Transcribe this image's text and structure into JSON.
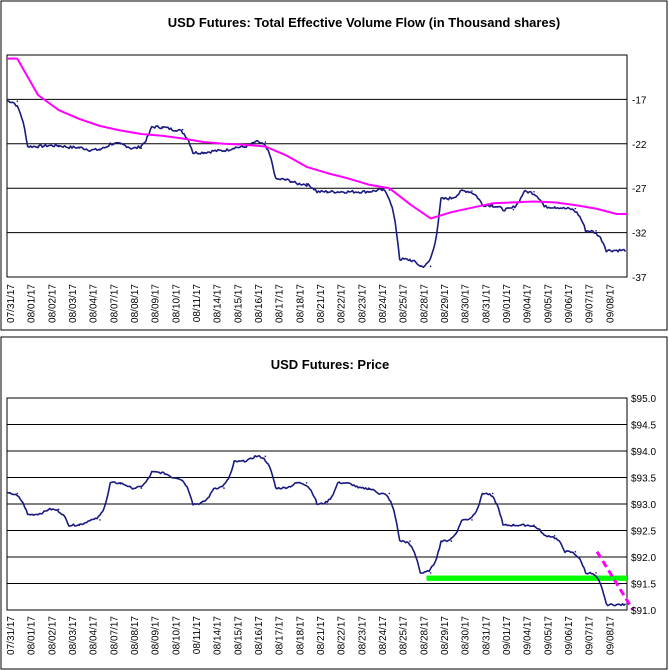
{
  "chart_data": [
    {
      "type": "line",
      "title": "USD Futures: Total Effective Volume Flow (in Thousand shares)",
      "xlabel": "",
      "ylabel": "",
      "ylim": [
        -37,
        -12
      ],
      "yticks": [
        -17,
        -22,
        -27,
        -32,
        -37
      ],
      "ytick_labels": [
        "-17",
        "-22",
        "-27",
        "-32",
        "-37"
      ],
      "categories": [
        "07/31/17",
        "08/01/17",
        "08/02/17",
        "08/03/17",
        "08/04/17",
        "08/07/17",
        "08/08/17",
        "08/09/17",
        "08/10/17",
        "08/11/17",
        "08/14/17",
        "08/15/17",
        "08/16/17",
        "08/17/17",
        "08/18/17",
        "08/21/17",
        "08/22/17",
        "08/23/17",
        "08/24/17",
        "08/25/17",
        "08/28/17",
        "08/29/17",
        "08/30/17",
        "08/31/17",
        "09/01/17",
        "09/04/17",
        "09/05/17",
        "09/06/17",
        "09/07/17",
        "09/08/17"
      ],
      "grid": true,
      "series": [
        {
          "color": "#1a1a80",
          "values": [
            -17.2,
            -22.3,
            -22.2,
            -22.4,
            -22.7,
            -22.0,
            -22.5,
            -20.1,
            -20.4,
            -23.0,
            -22.8,
            -22.4,
            -21.8,
            -26.0,
            -26.5,
            -27.4,
            -27.4,
            -27.4,
            -27.2,
            -35.0,
            -35.8,
            -28.2,
            -27.3,
            -28.9,
            -29.4,
            -27.4,
            -29.1,
            -29.3,
            -31.8,
            -34.0
          ]
        },
        {
          "color": "#ff00ff",
          "values": [
            -12.4,
            -16.5,
            -18.2,
            -19.2,
            -20.0,
            -20.5,
            -20.9,
            -21.1,
            -21.4,
            -21.8,
            -22.0,
            -22.1,
            -22.3,
            -23.3,
            -24.6,
            -25.3,
            -25.9,
            -26.6,
            -27.0,
            -28.8,
            -30.4,
            -29.7,
            -29.2,
            -28.7,
            -28.6,
            -28.5,
            -28.6,
            -28.9,
            -29.3,
            -29.9
          ]
        }
      ]
    },
    {
      "type": "line",
      "title": "USD Futures: Price",
      "xlabel": "",
      "ylabel": "",
      "ylim": [
        91.0,
        95.0
      ],
      "yticks": [
        95.0,
        94.5,
        94.0,
        93.5,
        93.0,
        92.5,
        92.0,
        91.5,
        91.0
      ],
      "ytick_labels": [
        "$95.0",
        "$94.5",
        "$94.0",
        "$93.5",
        "$93.0",
        "$92.5",
        "$92.0",
        "$91.5",
        "$91.0"
      ],
      "categories": [
        "07/31/17",
        "08/01/17",
        "08/02/17",
        "08/03/17",
        "08/04/17",
        "08/07/17",
        "08/08/17",
        "08/09/17",
        "08/10/17",
        "08/11/17",
        "08/14/17",
        "08/15/17",
        "08/16/17",
        "08/17/17",
        "08/18/17",
        "08/21/17",
        "08/22/17",
        "08/23/17",
        "08/24/17",
        "08/25/17",
        "08/28/17",
        "08/29/17",
        "08/30/17",
        "08/31/17",
        "09/01/17",
        "09/04/17",
        "09/05/17",
        "09/06/17",
        "09/07/17",
        "09/08/17"
      ],
      "grid": true,
      "series": [
        {
          "color": "#1a1a80",
          "values": [
            93.2,
            92.8,
            92.9,
            92.6,
            92.7,
            93.4,
            93.3,
            93.6,
            93.5,
            93.0,
            93.3,
            93.8,
            93.9,
            93.3,
            93.4,
            93.0,
            93.4,
            93.3,
            93.2,
            92.3,
            91.7,
            92.3,
            92.7,
            93.2,
            92.6,
            92.6,
            92.4,
            92.1,
            91.7,
            91.1
          ]
        }
      ],
      "support_band": {
        "from": "08/28/17",
        "to": "09/08/17",
        "low": 91.55,
        "high": 91.65,
        "color": "#00ff00"
      },
      "trend_line": {
        "from": "09/07/17",
        "to": "09/08/17",
        "start": 92.1,
        "end": 91.0,
        "color": "#ff00ff",
        "dashed": true
      }
    }
  ]
}
